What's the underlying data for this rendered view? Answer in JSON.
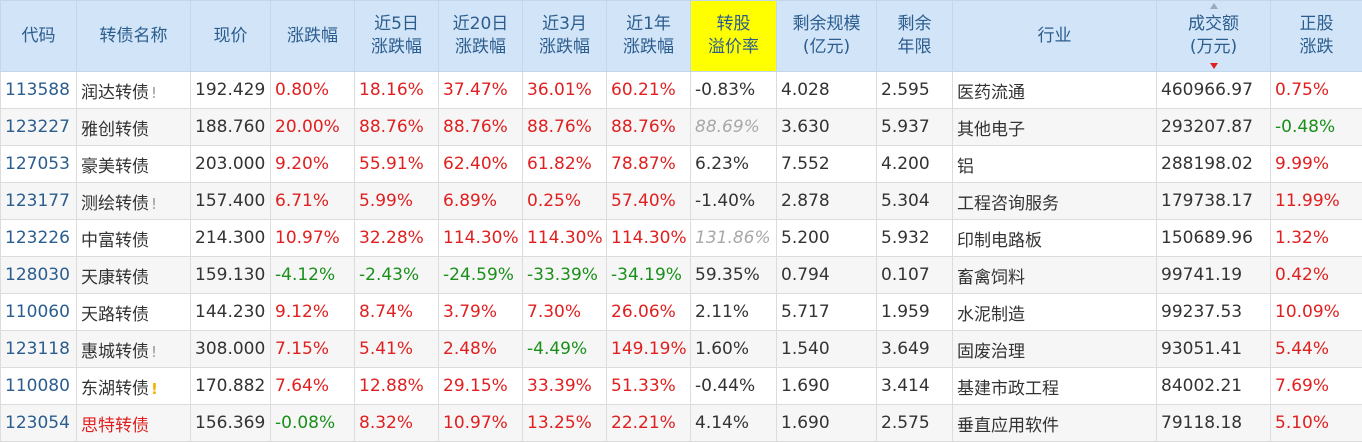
{
  "headers": [
    {
      "key": "code",
      "lines": [
        "代码"
      ]
    },
    {
      "key": "name",
      "lines": [
        "转债名称"
      ]
    },
    {
      "key": "price",
      "lines": [
        "现价"
      ]
    },
    {
      "key": "change",
      "lines": [
        "涨跌幅"
      ]
    },
    {
      "key": "chg5d",
      "lines": [
        "近5日",
        "涨跌幅"
      ]
    },
    {
      "key": "chg20d",
      "lines": [
        "近20日",
        "涨跌幅"
      ]
    },
    {
      "key": "chg3m",
      "lines": [
        "近3月",
        "涨跌幅"
      ]
    },
    {
      "key": "chg1y",
      "lines": [
        "近1年",
        "涨跌幅"
      ]
    },
    {
      "key": "premium",
      "lines": [
        "转股",
        "溢价率"
      ],
      "highlight": true
    },
    {
      "key": "remaining_size",
      "lines": [
        "剩余规模",
        "(亿元)"
      ]
    },
    {
      "key": "remaining_years",
      "lines": [
        "剩余",
        "年限"
      ]
    },
    {
      "key": "industry",
      "lines": [
        "行业"
      ]
    },
    {
      "key": "turnover",
      "lines": [
        "成交额",
        "(万元)"
      ],
      "sorted": "desc"
    },
    {
      "key": "stock_change",
      "lines": [
        "正股",
        "涨跌"
      ]
    }
  ],
  "colors": {
    "up": "#e02020",
    "down": "#1a8f1a",
    "header_bg": "#d2e4f7",
    "highlight": "#ffff00",
    "link": "#2b5d8e"
  },
  "rows": [
    {
      "code": "113588",
      "name": "润达转债",
      "mark": "!",
      "mark_color": "gray",
      "price": "192.429",
      "change": "0.80%",
      "chg5d": "18.16%",
      "chg20d": "37.47%",
      "chg3m": "36.01%",
      "chg1y": "60.21%",
      "premium": "-0.83%",
      "remaining_size": "4.028",
      "remaining_years": "2.595",
      "industry": "医药流通",
      "turnover": "460966.97",
      "stock_change": "0.75%"
    },
    {
      "code": "123227",
      "name": "雅创转债",
      "mark": "",
      "price": "188.760",
      "change": "20.00%",
      "chg5d": "88.76%",
      "chg20d": "88.76%",
      "chg3m": "88.76%",
      "chg1y": "88.76%",
      "premium": "88.69%",
      "premium_italic": true,
      "remaining_size": "3.630",
      "remaining_years": "5.937",
      "industry": "其他电子",
      "turnover": "293207.87",
      "stock_change": "-0.48%"
    },
    {
      "code": "127053",
      "name": "豪美转债",
      "mark": "",
      "price": "203.000",
      "change": "9.20%",
      "chg5d": "55.91%",
      "chg20d": "62.40%",
      "chg3m": "61.82%",
      "chg1y": "78.87%",
      "premium": "6.23%",
      "remaining_size": "7.552",
      "remaining_years": "4.200",
      "industry": "铝",
      "turnover": "288198.02",
      "stock_change": "9.99%"
    },
    {
      "code": "123177",
      "name": "测绘转债",
      "mark": "!",
      "mark_color": "gray",
      "price": "157.400",
      "change": "6.71%",
      "chg5d": "5.99%",
      "chg20d": "6.89%",
      "chg3m": "0.25%",
      "chg1y": "57.40%",
      "premium": "-1.40%",
      "remaining_size": "2.878",
      "remaining_years": "5.304",
      "industry": "工程咨询服务",
      "turnover": "179738.17",
      "stock_change": "11.99%"
    },
    {
      "code": "123226",
      "name": "中富转债",
      "mark": "",
      "price": "214.300",
      "change": "10.97%",
      "chg5d": "32.28%",
      "chg20d": "114.30%",
      "chg3m": "114.30%",
      "chg1y": "114.30%",
      "premium": "131.86%",
      "premium_italic": true,
      "remaining_size": "5.200",
      "remaining_years": "5.932",
      "industry": "印制电路板",
      "turnover": "150689.96",
      "stock_change": "1.32%"
    },
    {
      "code": "128030",
      "name": "天康转债",
      "mark": "",
      "price": "159.130",
      "change": "-4.12%",
      "chg5d": "-2.43%",
      "chg20d": "-24.59%",
      "chg3m": "-33.39%",
      "chg1y": "-34.19%",
      "premium": "59.35%",
      "remaining_size": "0.794",
      "remaining_years": "0.107",
      "industry": "畜禽饲料",
      "turnover": "99741.19",
      "stock_change": "0.42%"
    },
    {
      "code": "110060",
      "name": "天路转债",
      "mark": "",
      "price": "144.230",
      "change": "9.12%",
      "chg5d": "8.74%",
      "chg20d": "3.79%",
      "chg3m": "7.30%",
      "chg1y": "26.06%",
      "premium": "2.11%",
      "remaining_size": "5.717",
      "remaining_years": "1.959",
      "industry": "水泥制造",
      "turnover": "99237.53",
      "stock_change": "10.09%"
    },
    {
      "code": "123118",
      "name": "惠城转债",
      "mark": "!",
      "mark_color": "gray",
      "price": "308.000",
      "change": "7.15%",
      "chg5d": "5.41%",
      "chg20d": "2.48%",
      "chg3m": "-4.49%",
      "chg1y": "149.19%",
      "premium": "1.60%",
      "remaining_size": "1.540",
      "remaining_years": "3.649",
      "industry": "固废治理",
      "turnover": "93051.41",
      "stock_change": "5.44%"
    },
    {
      "code": "110080",
      "name": "东湖转债",
      "mark": "!",
      "mark_color": "yellow",
      "price": "170.882",
      "change": "7.64%",
      "chg5d": "12.88%",
      "chg20d": "29.15%",
      "chg3m": "33.39%",
      "chg1y": "51.33%",
      "premium": "-0.44%",
      "remaining_size": "1.690",
      "remaining_years": "3.414",
      "industry": "基建市政工程",
      "turnover": "84002.21",
      "stock_change": "7.69%"
    },
    {
      "code": "123054",
      "name": "思特转债",
      "name_red": true,
      "mark": "",
      "price": "156.369",
      "change": "-0.08%",
      "chg5d": "8.32%",
      "chg20d": "10.97%",
      "chg3m": "13.25%",
      "chg1y": "22.21%",
      "premium": "4.14%",
      "remaining_size": "1.690",
      "remaining_years": "2.575",
      "industry": "垂直应用软件",
      "turnover": "79118.18",
      "stock_change": "5.10%"
    }
  ]
}
